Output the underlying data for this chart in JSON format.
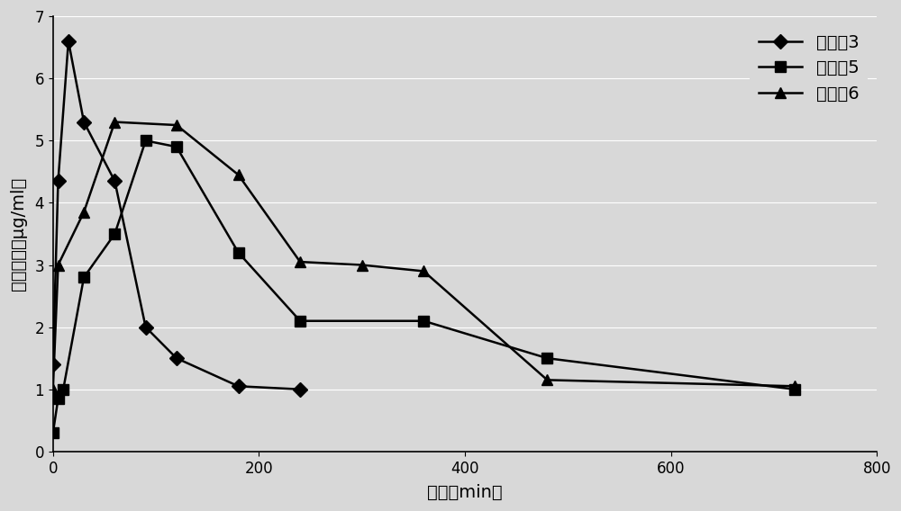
{
  "series": [
    {
      "label": "比较例3",
      "marker": "D",
      "x": [
        0,
        5,
        15,
        30,
        60,
        90,
        120,
        180,
        240
      ],
      "y": [
        1.4,
        4.35,
        6.6,
        5.3,
        4.35,
        2.0,
        1.5,
        1.05,
        1.0
      ]
    },
    {
      "label": "实施例5",
      "marker": "s",
      "x": [
        0,
        5,
        10,
        30,
        60,
        90,
        120,
        180,
        240,
        360,
        480,
        720
      ],
      "y": [
        0.3,
        0.85,
        1.0,
        2.8,
        3.5,
        5.0,
        4.9,
        3.2,
        2.1,
        2.1,
        1.5,
        1.0
      ]
    },
    {
      "label": "实施例6",
      "marker": "^",
      "x": [
        0,
        5,
        30,
        60,
        120,
        180,
        240,
        300,
        360,
        480,
        720
      ],
      "y": [
        1.0,
        3.0,
        3.85,
        5.3,
        5.25,
        4.45,
        3.05,
        3.0,
        2.9,
        1.15,
        1.05
      ]
    }
  ],
  "xlabel": "时间（min）",
  "ylabel": "药物浓度（μg/ml）",
  "xlim": [
    0,
    800
  ],
  "ylim": [
    0,
    7
  ],
  "xticks": [
    0,
    200,
    400,
    600,
    800
  ],
  "yticks": [
    0,
    1,
    2,
    3,
    4,
    5,
    6,
    7
  ],
  "background_color": "#d8d8d8",
  "plot_bg_color": "#d8d8d8",
  "line_color": "#000000",
  "markersize": 8,
  "linewidth": 1.8,
  "legend_loc": "upper right",
  "legend_fontsize": 14,
  "axis_fontsize": 14,
  "tick_fontsize": 12
}
